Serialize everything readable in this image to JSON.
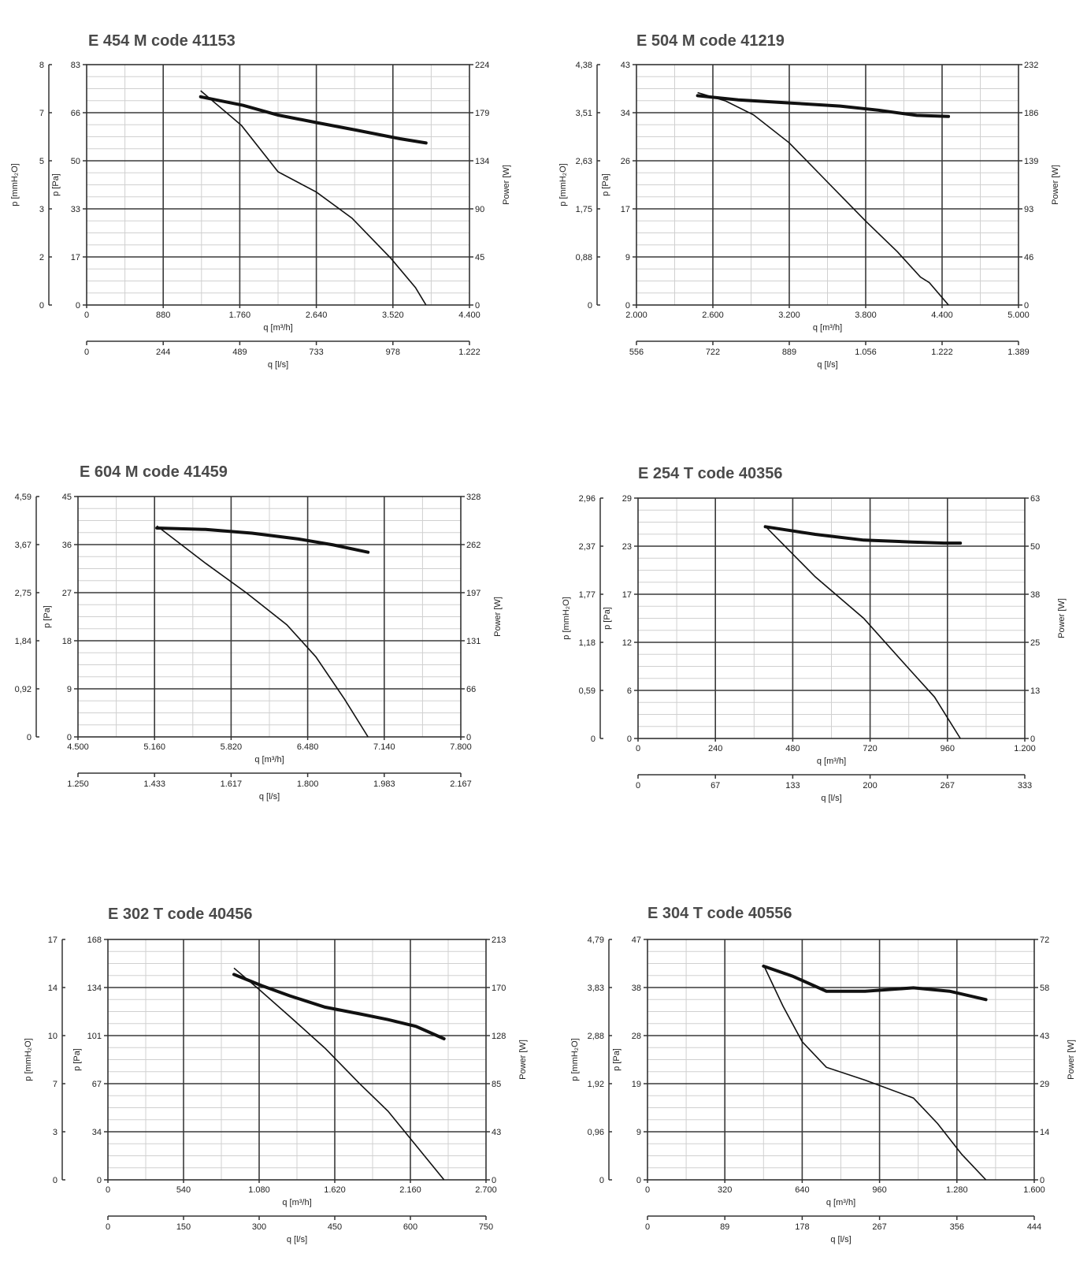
{
  "chart_data": [
    {
      "type": "line",
      "title": "E 454 M code 41153",
      "xlabel": "q [m³/h]",
      "x2label": "q [l/s]",
      "ylabel": "p [Pa]",
      "y2label": "p [mmH₂O]",
      "y3label": "Power [W]",
      "xlim": [
        0,
        4400
      ],
      "ylim": [
        0,
        83
      ],
      "y3lim": [
        0,
        224
      ],
      "x_ticks": [
        "0",
        "880",
        "1.760",
        "2.640",
        "3.520",
        "4.400"
      ],
      "x2_ticks": [
        "0",
        "244",
        "489",
        "733",
        "978",
        "1.222"
      ],
      "y_ticks": [
        "0",
        "17",
        "33",
        "50",
        "66",
        "83"
      ],
      "y2_ticks": [
        "0",
        "2",
        "3",
        "5",
        "7",
        "8"
      ],
      "y3_ticks": [
        "0",
        "45",
        "90",
        "134",
        "179",
        "224"
      ],
      "grid": true,
      "series": [
        {
          "role": "pressure",
          "x": [
            1310,
            1780,
            2200,
            2640,
            3050,
            3500,
            3780,
            3900
          ],
          "y": [
            74,
            62,
            46,
            39,
            30,
            16,
            6,
            0
          ]
        },
        {
          "role": "power",
          "x": [
            1310,
            1800,
            2200,
            2640,
            3100,
            3600,
            3900
          ],
          "y": [
            194,
            186,
            177,
            170,
            163,
            155,
            151
          ]
        }
      ]
    },
    {
      "type": "line",
      "title": "E 504 M code 41219",
      "xlabel": "q [m³/h]",
      "x2label": "q [l/s]",
      "ylabel": "p [Pa]",
      "y2label": "p [mmH₂O]",
      "y3label": "Power [W]",
      "xlim": [
        2000,
        5000
      ],
      "ylim": [
        0,
        43
      ],
      "y3lim": [
        0,
        232
      ],
      "x_ticks": [
        "2.000",
        "2.600",
        "3.200",
        "3.800",
        "4.400",
        "5.000"
      ],
      "x2_ticks": [
        "556",
        "722",
        "889",
        "1.056",
        "1.222",
        "1.389"
      ],
      "y_ticks": [
        "0",
        "9",
        "17",
        "26",
        "34",
        "43"
      ],
      "y2_ticks": [
        "0",
        "0,88",
        "1,75",
        "2,63",
        "3,51",
        "4,38"
      ],
      "y3_ticks": [
        "0",
        "46",
        "93",
        "139",
        "186",
        "232"
      ],
      "grid": true,
      "series": [
        {
          "role": "pressure",
          "x": [
            2480,
            2700,
            2920,
            3200,
            3500,
            3800,
            4050,
            4230,
            4300,
            4450
          ],
          "y": [
            38,
            36.5,
            34,
            29,
            22,
            15,
            9.5,
            5,
            4,
            0
          ]
        },
        {
          "role": "power",
          "x": [
            2480,
            2800,
            3200,
            3600,
            3900,
            4200,
            4450
          ],
          "y": [
            202,
            198,
            195,
            192,
            188,
            183,
            182
          ]
        }
      ]
    },
    {
      "type": "line",
      "title": "E 604 M code 41459",
      "xlabel": "q [m³/h]",
      "x2label": "q [l/s]",
      "ylabel": "p [Pa]",
      "y2label": "",
      "y3label": "Power [W]",
      "xlim": [
        4500,
        7800
      ],
      "ylim": [
        0,
        45
      ],
      "y3lim": [
        0,
        328
      ],
      "x_ticks": [
        "4.500",
        "5.160",
        "5.820",
        "6.480",
        "7.140",
        "7.800"
      ],
      "x2_ticks": [
        "1.250",
        "1.433",
        "1.617",
        "1.800",
        "1.983",
        "2.167"
      ],
      "y_ticks": [
        "0",
        "9",
        "18",
        "27",
        "36",
        "45"
      ],
      "y2_ticks": [
        "0",
        "0,92",
        "1,84",
        "2,75",
        "3,67",
        "4,59"
      ],
      "y3_ticks": [
        "0",
        "66",
        "131",
        "197",
        "262",
        "328"
      ],
      "grid": true,
      "series": [
        {
          "role": "pressure",
          "x": [
            5180,
            5600,
            5950,
            6300,
            6550,
            6800,
            7000
          ],
          "y": [
            39.5,
            32.5,
            27,
            21,
            15,
            7,
            0
          ]
        },
        {
          "role": "power",
          "x": [
            5180,
            5600,
            6000,
            6400,
            6700,
            7000
          ],
          "y": [
            285,
            283,
            278,
            270,
            262,
            252
          ]
        }
      ]
    },
    {
      "type": "line",
      "title": "E 254 T code 40356",
      "xlabel": "q [m³/h]",
      "x2label": "q [l/s]",
      "ylabel": "p [Pa]",
      "y2label": "p [mmH₂O]",
      "y3label": "Power [W]",
      "xlim": [
        0,
        1200
      ],
      "ylim": [
        0,
        29
      ],
      "y3lim": [
        0,
        63
      ],
      "x_ticks": [
        "0",
        "240",
        "480",
        "720",
        "960",
        "1.200"
      ],
      "x2_ticks": [
        "0",
        "67",
        "133",
        "200",
        "267",
        "333"
      ],
      "y_ticks": [
        "0",
        "6",
        "12",
        "17",
        "23",
        "29"
      ],
      "y2_ticks": [
        "0",
        "0,59",
        "1,18",
        "1,77",
        "2,37",
        "2,96"
      ],
      "y3_ticks": [
        "0",
        "13",
        "25",
        "38",
        "50",
        "63"
      ],
      "grid": true,
      "series": [
        {
          "role": "pressure",
          "x": [
            395,
            550,
            700,
            850,
            920,
            1000
          ],
          "y": [
            25.6,
            19.5,
            14.5,
            8,
            5,
            0
          ]
        },
        {
          "role": "power",
          "x": [
            395,
            550,
            700,
            850,
            950,
            1000
          ],
          "y": [
            55.5,
            53.5,
            52,
            51.5,
            51.2,
            51.2
          ]
        }
      ]
    },
    {
      "type": "line",
      "title": "E 302 T code 40456",
      "xlabel": "q [m³/h]",
      "x2label": "q [l/s]",
      "ylabel": "p [Pa]",
      "y2label": "p [mmH₂O]",
      "y3label": "Power [W]",
      "xlim": [
        0,
        2700
      ],
      "ylim": [
        0,
        168
      ],
      "y3lim": [
        0,
        213
      ],
      "x_ticks": [
        "0",
        "540",
        "1.080",
        "1.620",
        "2.160",
        "2.700"
      ],
      "x2_ticks": [
        "0",
        "150",
        "300",
        "450",
        "600",
        "750"
      ],
      "y_ticks": [
        "0",
        "34",
        "67",
        "101",
        "134",
        "168"
      ],
      "y2_ticks": [
        "0",
        "3",
        "7",
        "10",
        "14",
        "17"
      ],
      "y3_ticks": [
        "0",
        "43",
        "85",
        "128",
        "170",
        "213"
      ],
      "grid": true,
      "series": [
        {
          "role": "pressure",
          "x": [
            900,
            1080,
            1300,
            1550,
            1800,
            2000,
            2200,
            2400
          ],
          "y": [
            148,
            133,
            114,
            92,
            67,
            48,
            24,
            0
          ]
        },
        {
          "role": "power",
          "x": [
            900,
            1100,
            1300,
            1550,
            1800,
            2000,
            2200,
            2400
          ],
          "y": [
            182,
            172,
            163,
            153,
            147,
            142,
            136,
            125
          ]
        }
      ]
    },
    {
      "type": "line",
      "title": "E 304 T code 40556",
      "xlabel": "q [m³/h]",
      "x2label": "q [l/s]",
      "ylabel": "p [Pa]",
      "y2label": "p [mmH₂O]",
      "y3label": "Power [W]",
      "xlim": [
        0,
        1600
      ],
      "ylim": [
        0,
        47
      ],
      "y3lim": [
        0,
        72
      ],
      "x_ticks": [
        "0",
        "320",
        "640",
        "960",
        "1.280",
        "1.600"
      ],
      "x2_ticks": [
        "0",
        "89",
        "178",
        "267",
        "356",
        "444"
      ],
      "y_ticks": [
        "0",
        "9",
        "19",
        "28",
        "38",
        "47"
      ],
      "y2_ticks": [
        "0",
        "0,96",
        "1,92",
        "2,88",
        "3,83",
        "4,79"
      ],
      "y3_ticks": [
        "0",
        "14",
        "29",
        "43",
        "58",
        "72"
      ],
      "grid": true,
      "series": [
        {
          "role": "pressure",
          "x": [
            480,
            560,
            640,
            740,
            900,
            1100,
            1200,
            1300,
            1400
          ],
          "y": [
            42,
            34,
            27,
            22,
            19.5,
            16,
            11,
            5,
            0
          ]
        },
        {
          "role": "power",
          "x": [
            480,
            600,
            740,
            900,
            1100,
            1250,
            1400
          ],
          "y": [
            64,
            61,
            56.5,
            56.5,
            57.5,
            56.5,
            54
          ]
        }
      ]
    }
  ]
}
